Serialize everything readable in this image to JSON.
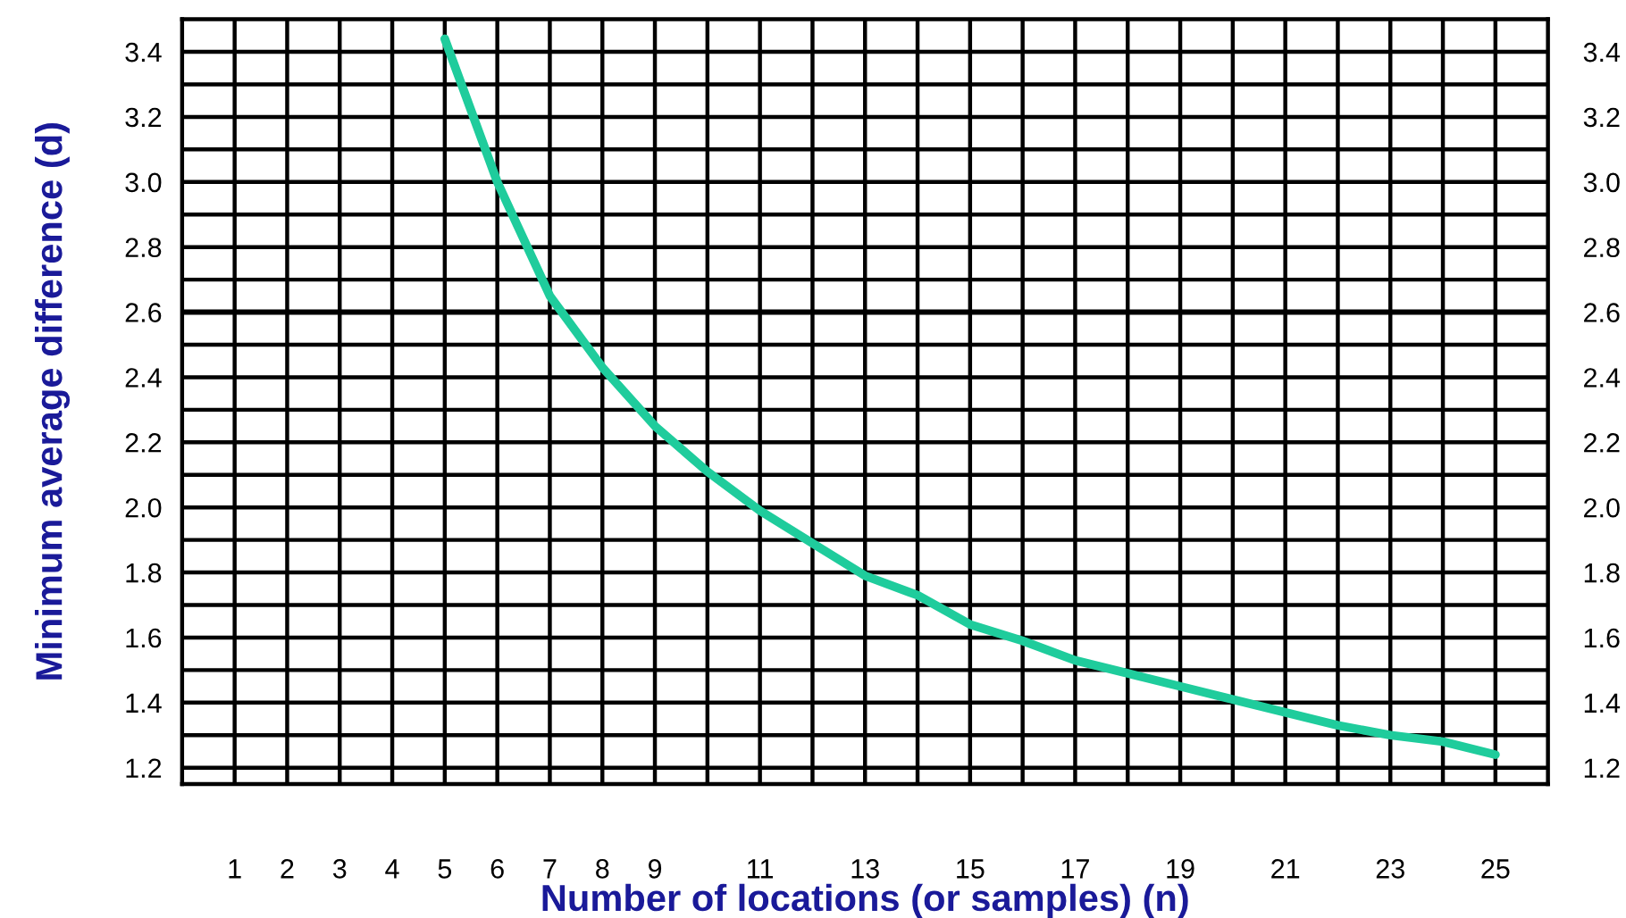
{
  "chart_data": {
    "type": "line",
    "xlabel": "Number of locations (or samples) (n)",
    "ylabel": "Minimum average difference (d)",
    "x": [
      5,
      6,
      7,
      8,
      9,
      10,
      11,
      12,
      13,
      14,
      15,
      16,
      17,
      18,
      19,
      20,
      21,
      22,
      23,
      24,
      25
    ],
    "series": [
      {
        "color": "#1fcc9c",
        "values": [
          3.44,
          3.0,
          2.65,
          2.43,
          2.25,
          2.11,
          1.99,
          1.89,
          1.79,
          1.73,
          1.64,
          1.59,
          1.53,
          1.49,
          1.45,
          1.41,
          1.37,
          1.33,
          1.3,
          1.28,
          1.24
        ]
      }
    ],
    "xlim": [
      0,
      26
    ],
    "xticks": [
      1,
      2,
      3,
      4,
      5,
      6,
      7,
      8,
      9,
      {
        "value": 10,
        "label": null
      },
      11,
      {
        "value": 12,
        "label": null
      },
      13,
      {
        "value": 14,
        "label": null
      },
      15,
      {
        "value": 16,
        "label": null
      },
      17,
      {
        "value": 18,
        "label": null
      },
      19,
      {
        "value": 20,
        "label": null
      },
      21,
      {
        "value": 22,
        "label": null
      },
      23,
      {
        "value": 24,
        "label": null
      },
      25
    ],
    "ylim": [
      1.15,
      3.5
    ],
    "yticks": [
      1.2,
      {
        "value": 1.3,
        "label": null
      },
      1.4,
      {
        "value": 1.5,
        "label": null
      },
      1.6,
      {
        "value": 1.7,
        "label": null
      },
      1.8,
      {
        "value": 1.9,
        "label": null
      },
      {
        "value": 2.0,
        "label": "2.0"
      },
      {
        "value": 2.1,
        "label": null
      },
      2.2,
      {
        "value": 2.3,
        "label": null
      },
      2.4,
      {
        "value": 2.5,
        "label": null
      },
      2.6,
      {
        "value": 2.7,
        "label": null
      },
      2.8,
      {
        "value": 2.9,
        "label": null
      },
      {
        "value": 3.0,
        "label": "3.0"
      },
      {
        "value": 3.1,
        "label": null
      },
      3.2,
      {
        "value": 3.3,
        "label": null
      },
      3.4
    ],
    "y2lim": [
      1.15,
      3.5
    ],
    "y2ticks": [
      1.2,
      {
        "value": 1.3,
        "label": null
      },
      1.4,
      {
        "value": 1.5,
        "label": null
      },
      1.6,
      {
        "value": 1.7,
        "label": null
      },
      1.8,
      {
        "value": 1.9,
        "label": null
      },
      {
        "value": 2.0,
        "label": "2.0"
      },
      {
        "value": 2.1,
        "label": null
      },
      2.2,
      {
        "value": 2.3,
        "label": null
      },
      2.4,
      {
        "value": 2.5,
        "label": null
      },
      2.6,
      {
        "value": 2.7,
        "label": null
      },
      2.8,
      {
        "value": 2.9,
        "label": null
      },
      {
        "value": 3.0,
        "label": "3.0"
      },
      {
        "value": 3.1,
        "label": null
      },
      3.2,
      {
        "value": 3.3,
        "label": null
      },
      3.4
    ],
    "ref_lines": [
      {
        "axis": "y",
        "value": 2.6,
        "color": "#000000"
      }
    ],
    "grid": true,
    "line_style": "solid",
    "marker": "none"
  }
}
